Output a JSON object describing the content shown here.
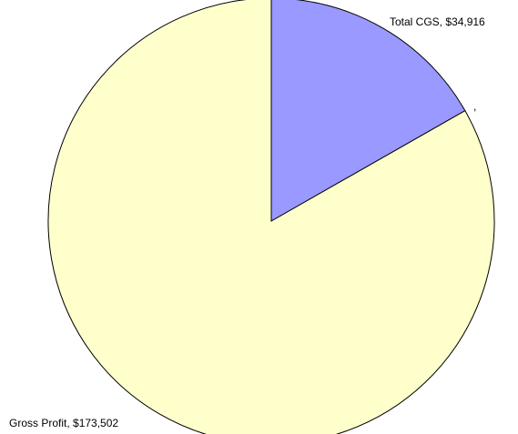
{
  "chart_data": {
    "type": "pie",
    "values": [
      34916,
      null,
      173502
    ],
    "value_labels": [
      "Total CGS, $34,916",
      ",",
      "Gross Profit, $173,502"
    ],
    "colors": [
      "#9999ff",
      null,
      "#ffffcc"
    ]
  }
}
